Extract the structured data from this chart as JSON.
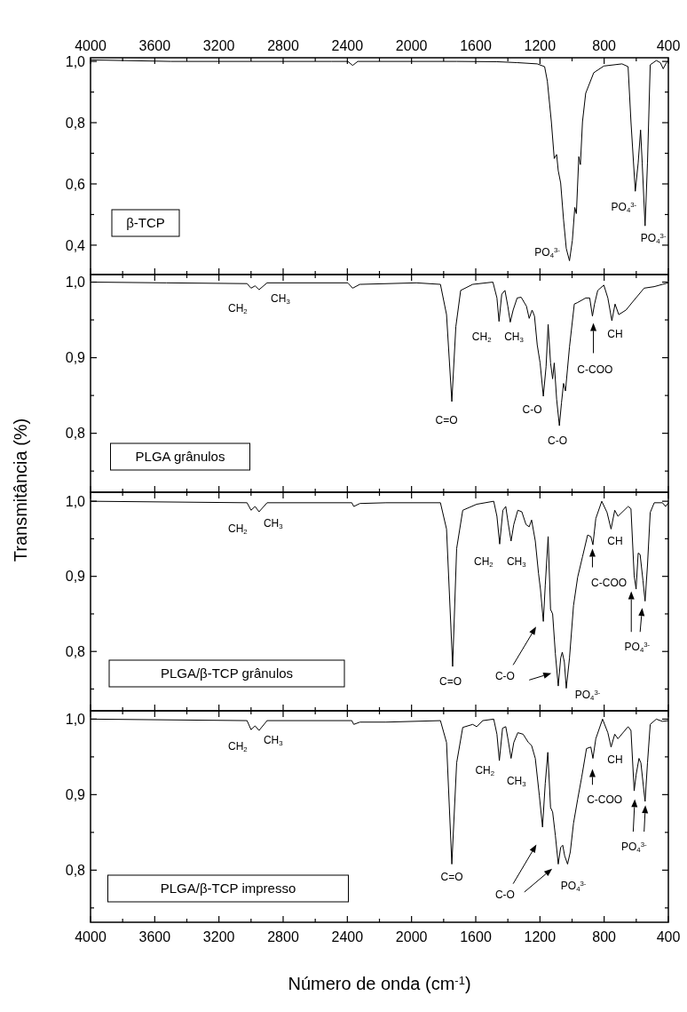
{
  "chart_data": [
    {
      "type": "line",
      "title": "β-TCP",
      "xlim": [
        4000,
        400
      ],
      "ylim": [
        0.304,
        1.012
      ],
      "tick_labels": "y",
      "x2lim": [
        4000,
        400
      ],
      "x2ticks": [
        4000,
        {
          "value": 3800,
          "label": null
        },
        3600,
        {
          "value": 3400,
          "label": null
        },
        3200,
        {
          "value": 3000,
          "label": null
        },
        2800,
        {
          "value": 2600,
          "label": null
        },
        2400,
        {
          "value": 2200,
          "label": null
        },
        2000,
        {
          "value": 1800,
          "label": null
        },
        1600,
        {
          "value": 1400,
          "label": null
        },
        1200,
        {
          "value": 1000,
          "label": null
        },
        800,
        {
          "value": 600,
          "label": null
        },
        400
      ],
      "yticks": [
        {
          "value": 0.4,
          "label": "0,4"
        },
        {
          "value": 0.5,
          "label": null
        },
        {
          "value": 0.6,
          "label": "0,6"
        },
        {
          "value": 0.7,
          "label": null
        },
        {
          "value": 0.8,
          "label": "0,8"
        },
        {
          "value": 0.9,
          "label": null
        },
        {
          "value": 1.0,
          "label": "1,0"
        }
      ],
      "series": [
        {
          "color": "#000000",
          "x": [
            4000,
            3500,
            3000,
            2500,
            2397,
            2367,
            2335,
            2000,
            1720,
            1468,
            1342,
            1217,
            1171,
            1154,
            1129,
            1111,
            1096,
            1086,
            1071,
            1053,
            1036,
            1016,
            998,
            983,
            973,
            958,
            948,
            935,
            915,
            865,
            802,
            689,
            651,
            633,
            606,
            588,
            573,
            563,
            545,
            530,
            513,
            475,
            450,
            432,
            412,
            400
          ],
          "values": [
            1.005,
            1.0,
            1.0,
            1.0,
            1.0,
            0.987,
            1.0,
            1.0,
            1.0,
            0.999,
            0.996,
            0.992,
            0.983,
            0.936,
            0.803,
            0.683,
            0.696,
            0.643,
            0.603,
            0.483,
            0.389,
            0.349,
            0.416,
            0.523,
            0.503,
            0.689,
            0.663,
            0.803,
            0.896,
            0.963,
            0.985,
            0.992,
            0.983,
            0.803,
            0.576,
            0.669,
            0.776,
            0.669,
            0.463,
            0.669,
            0.989,
            1.003,
            0.996,
            0.976,
            0.996,
            1.003
          ]
        }
      ],
      "annotations": [
        "PO$_{4}$$^{3-}$",
        "PO$_{4}$$^{3-}$",
        "PO$_{4}$$^{3-}$"
      ]
    },
    {
      "type": "line",
      "title": "PLGA grânulos",
      "ylabel": "Transmitância (%)",
      "xlim": [
        4000,
        400
      ],
      "ylim": [
        0.722,
        1.01
      ],
      "tick_labels": "y",
      "xticks": [
        4000,
        {
          "value": 3800,
          "label": null
        },
        3600,
        {
          "value": 3400,
          "label": null
        },
        3200,
        {
          "value": 3000,
          "label": null
        },
        2800,
        {
          "value": 2600,
          "label": null
        },
        2400,
        {
          "value": 2200,
          "label": null
        },
        2000,
        {
          "value": 1800,
          "label": null
        },
        1600,
        {
          "value": 1400,
          "label": null
        },
        1200,
        {
          "value": 1000,
          "label": null
        },
        800,
        {
          "value": 600,
          "label": null
        },
        400
      ],
      "yticks": [
        {
          "value": 0.75,
          "label": null
        },
        {
          "value": 0.8,
          "label": "0,8"
        },
        {
          "value": 0.85,
          "label": null
        },
        {
          "value": 0.9,
          "label": "0,9"
        },
        {
          "value": 0.95,
          "label": null
        },
        {
          "value": 1.0,
          "label": "1,0"
        }
      ],
      "series": [
        {
          "color": "#000000",
          "x": [
            4000,
            3528,
            3025,
            3000,
            2975,
            2950,
            2900,
            2397,
            2367,
            2322,
            1970,
            1820,
            1782,
            1749,
            1724,
            1694,
            1619,
            1493,
            1468,
            1455,
            1438,
            1418,
            1400,
            1385,
            1367,
            1342,
            1317,
            1284,
            1267,
            1249,
            1234,
            1217,
            1199,
            1179,
            1162,
            1149,
            1134,
            1121,
            1111,
            1096,
            1079,
            1066,
            1053,
            1041,
            1016,
            986,
            965,
            915,
            890,
            873,
            860,
            840,
            802,
            777,
            752,
            732,
            709,
            664,
            614,
            551,
            488,
            437,
            400
          ],
          "values": [
            1.0,
            0.999,
            0.998,
            0.992,
            0.995,
            0.99,
            0.999,
            0.999,
            0.992,
            0.997,
            0.999,
            0.997,
            0.957,
            0.842,
            0.941,
            0.989,
            0.997,
            1.0,
            0.979,
            0.948,
            0.984,
            0.989,
            0.968,
            0.947,
            0.963,
            0.979,
            0.98,
            0.968,
            0.952,
            0.963,
            0.955,
            0.917,
            0.893,
            0.849,
            0.888,
            0.944,
            0.893,
            0.872,
            0.893,
            0.845,
            0.81,
            0.84,
            0.866,
            0.856,
            0.914,
            0.971,
            0.973,
            0.979,
            0.979,
            0.955,
            0.971,
            0.989,
            0.996,
            0.979,
            0.949,
            0.971,
            0.957,
            0.963,
            0.976,
            0.992,
            0.994,
            0.997,
            0.999
          ]
        }
      ],
      "annotations": [
        "CH$_{2}$",
        "CH$_{3}$",
        "C=O",
        "CH$_{2}$",
        "CH$_{3}$",
        "C-O",
        "C-O",
        "C-COO",
        "CH"
      ]
    },
    {
      "type": "line",
      "title": "PLGA/β-TCP grânulos",
      "xlim": [
        4000,
        400
      ],
      "ylim": [
        0.721,
        1.012
      ],
      "tick_labels": "y",
      "xticks": [
        4000,
        {
          "value": 3800,
          "label": null
        },
        3600,
        {
          "value": 3400,
          "label": null
        },
        3200,
        {
          "value": 3000,
          "label": null
        },
        2800,
        {
          "value": 2600,
          "label": null
        },
        2400,
        {
          "value": 2200,
          "label": null
        },
        2000,
        {
          "value": 1800,
          "label": null
        },
        1600,
        {
          "value": 1400,
          "label": null
        },
        1200,
        {
          "value": 1000,
          "label": null
        },
        800,
        {
          "value": 600,
          "label": null
        },
        400
      ],
      "yticks": [
        {
          "value": 0.75,
          "label": null
        },
        {
          "value": 0.8,
          "label": "0,8"
        },
        {
          "value": 0.85,
          "label": null
        },
        {
          "value": 0.9,
          "label": "0,9"
        },
        {
          "value": 0.95,
          "label": null
        },
        {
          "value": 1.0,
          "label": "1,0"
        }
      ],
      "series": [
        {
          "color": "#000000",
          "x": [
            4000,
            3025,
            3000,
            2975,
            2950,
            2900,
            2372,
            2360,
            2322,
            2159,
            1820,
            1782,
            1744,
            1719,
            1681,
            1594,
            1488,
            1468,
            1451,
            1431,
            1413,
            1398,
            1380,
            1363,
            1338,
            1313,
            1287,
            1267,
            1252,
            1229,
            1209,
            1197,
            1179,
            1167,
            1149,
            1134,
            1121,
            1104,
            1086,
            1071,
            1061,
            1048,
            1036,
            1016,
            991,
            965,
            935,
            903,
            883,
            870,
            852,
            815,
            782,
            757,
            734,
            714,
            651,
            633,
            613,
            601,
            588,
            576,
            558,
            545,
            530,
            513,
            488,
            437,
            417,
            400
          ],
          "values": [
            1.0,
            0.998,
            0.988,
            0.993,
            0.986,
            0.998,
            0.998,
            0.993,
            0.997,
            0.998,
            0.998,
            0.963,
            0.78,
            0.937,
            0.988,
            0.996,
            1.0,
            0.98,
            0.943,
            0.988,
            0.993,
            0.971,
            0.947,
            0.969,
            0.988,
            0.986,
            0.969,
            0.966,
            0.975,
            0.947,
            0.904,
            0.883,
            0.84,
            0.888,
            0.953,
            0.856,
            0.85,
            0.797,
            0.754,
            0.791,
            0.799,
            0.786,
            0.751,
            0.791,
            0.861,
            0.899,
            0.926,
            0.955,
            0.953,
            0.942,
            0.977,
            1.0,
            0.985,
            0.963,
            0.988,
            0.98,
            0.993,
            0.99,
            0.901,
            0.883,
            0.931,
            0.929,
            0.894,
            0.867,
            0.915,
            0.985,
            0.998,
            0.998,
            0.993,
            0.998
          ]
        }
      ],
      "annotations": [
        "CH$_{2}$",
        "CH$_{3}$",
        "C=O",
        "CH$_{2}$",
        "CH$_{3}$",
        "C-O",
        "PO$_{4}$$^{3-}$",
        "C-COO",
        "CH",
        "PO$_{4}$$^{3-}$"
      ]
    },
    {
      "type": "line",
      "title": "PLGA/β-TCP impresso",
      "xlabel": "Número de onda (cm$^{-1}$)",
      "xlim": [
        4000,
        400
      ],
      "ylim": [
        0.731,
        1.011
      ],
      "xticks": [
        4000,
        {
          "value": 3800,
          "label": null
        },
        3600,
        {
          "value": 3400,
          "label": null
        },
        3200,
        {
          "value": 3000,
          "label": null
        },
        2800,
        {
          "value": 2600,
          "label": null
        },
        2400,
        {
          "value": 2200,
          "label": null
        },
        2000,
        {
          "value": 1800,
          "label": null
        },
        1600,
        {
          "value": 1400,
          "label": null
        },
        1200,
        {
          "value": 1000,
          "label": null
        },
        800,
        {
          "value": 600,
          "label": null
        },
        400
      ],
      "yticks": [
        {
          "value": 0.75,
          "label": null
        },
        {
          "value": 0.8,
          "label": "0,8"
        },
        {
          "value": 0.85,
          "label": null
        },
        {
          "value": 0.9,
          "label": "0,9"
        },
        {
          "value": 0.95,
          "label": null
        },
        {
          "value": 1.0,
          "label": "1,0"
        }
      ],
      "series": [
        {
          "color": "#000000",
          "x": [
            4000,
            3025,
            3000,
            2975,
            2950,
            2900,
            2372,
            2360,
            2322,
            2159,
            1820,
            1782,
            1749,
            1719,
            1681,
            1619,
            1594,
            1556,
            1488,
            1468,
            1453,
            1433,
            1413,
            1398,
            1380,
            1363,
            1338,
            1305,
            1272,
            1252,
            1229,
            1204,
            1184,
            1167,
            1151,
            1134,
            1121,
            1104,
            1086,
            1071,
            1058,
            1046,
            1028,
            1011,
            991,
            965,
            940,
            910,
            883,
            870,
            852,
            810,
            777,
            757,
            734,
            714,
            651,
            633,
            613,
            601,
            583,
            571,
            555,
            545,
            530,
            513,
            475,
            437,
            400
          ],
          "values": [
            1.0,
            0.998,
            0.986,
            0.991,
            0.985,
            0.998,
            0.998,
            0.993,
            0.996,
            0.996,
            0.998,
            0.969,
            0.808,
            0.942,
            0.989,
            0.993,
            0.99,
            0.998,
            1.0,
            0.98,
            0.945,
            0.988,
            0.99,
            0.972,
            0.948,
            0.969,
            0.982,
            0.98,
            0.969,
            0.965,
            0.948,
            0.899,
            0.857,
            0.915,
            0.956,
            0.883,
            0.877,
            0.846,
            0.808,
            0.83,
            0.833,
            0.819,
            0.808,
            0.824,
            0.862,
            0.894,
            0.923,
            0.961,
            0.963,
            0.948,
            0.974,
            1.0,
            0.982,
            0.963,
            0.98,
            0.974,
            0.99,
            0.985,
            0.905,
            0.926,
            0.948,
            0.942,
            0.91,
            0.891,
            0.942,
            0.993,
            1.0,
            0.997,
            0.998
          ]
        }
      ],
      "annotations": [
        "CH$_{2}$",
        "CH$_{3}$",
        "C=O",
        "CH$_{2}$",
        "CH$_{3}$",
        "C-O",
        "PO$_{4}$$^{3-}$",
        "C-COO",
        "CH",
        "PO$_{4}$$^{3-}$"
      ]
    }
  ]
}
